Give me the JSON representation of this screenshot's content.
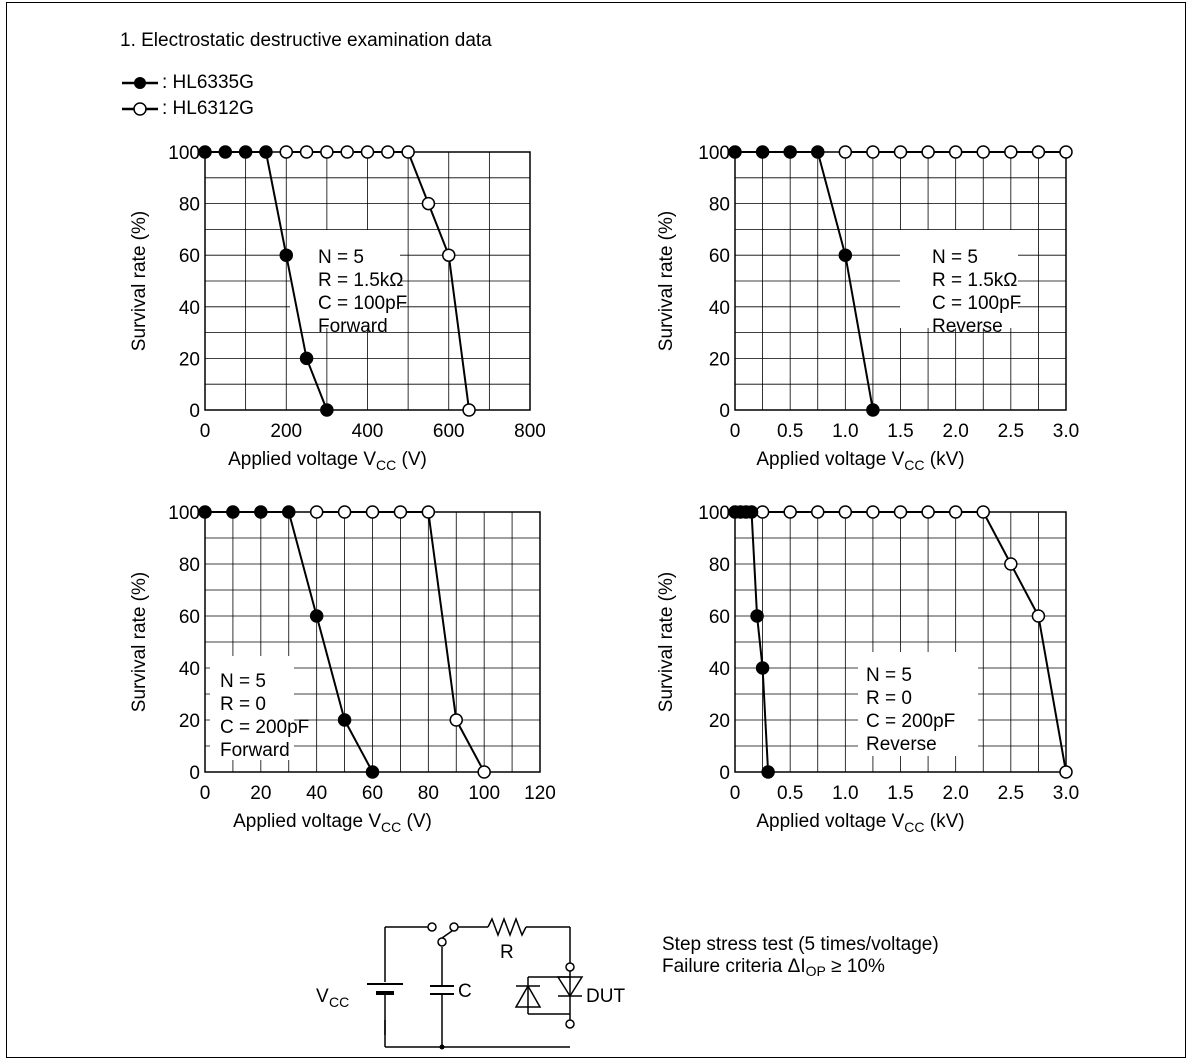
{
  "section_title": "1. Electrostatic destructive examination data",
  "legend": [
    {
      "label": ": HL6335G",
      "marker": "filled-circle"
    },
    {
      "label": ": HL6312G",
      "marker": "open-circle"
    }
  ],
  "axis_text": {
    "ylabel": "Survival rate  (%)",
    "xlabel_prefix": "Applied voltage  V",
    "xlabel_subscript": "CC"
  },
  "chart_data": [
    {
      "type": "line",
      "xlabel_unit": "(V)",
      "xlim": [
        0,
        800
      ],
      "ylim": [
        0,
        100
      ],
      "xticks": [
        0,
        200,
        400,
        600,
        800
      ],
      "xtick_labels": [
        "0",
        "200",
        "400",
        "600",
        "800"
      ],
      "yticks": [
        0,
        20,
        40,
        60,
        80,
        100
      ],
      "ytick_labels": [
        "0",
        "20",
        "40",
        "60",
        "80",
        "100"
      ],
      "annotation": [
        "N = 5",
        "R = 1.5kΩ",
        "C = 100pF",
        "Forward"
      ],
      "series": [
        {
          "name": "HL6335G",
          "marker": "filled",
          "x": [
            0,
            50,
            100,
            150,
            200,
            250,
            300
          ],
          "y": [
            100,
            100,
            100,
            100,
            60,
            20,
            0
          ]
        },
        {
          "name": "HL6312G",
          "marker": "open",
          "x": [
            200,
            250,
            300,
            350,
            400,
            450,
            500,
            550,
            600,
            650
          ],
          "y": [
            100,
            100,
            100,
            100,
            100,
            100,
            100,
            80,
            60,
            0
          ]
        }
      ]
    },
    {
      "type": "line",
      "xlabel_unit": "(kV)",
      "xlim": [
        0,
        3.0
      ],
      "ylim": [
        0,
        100
      ],
      "xticks": [
        0,
        0.5,
        1.0,
        1.5,
        2.0,
        2.5,
        3.0
      ],
      "xtick_labels": [
        "0",
        "0.5",
        "1.0",
        "1.5",
        "2.0",
        "2.5",
        "3.0"
      ],
      "yticks": [
        0,
        20,
        40,
        60,
        80,
        100
      ],
      "ytick_labels": [
        "0",
        "20",
        "40",
        "60",
        "80",
        "100"
      ],
      "annotation": [
        "N = 5",
        "R = 1.5kΩ",
        "C = 100pF",
        "Reverse"
      ],
      "series": [
        {
          "name": "HL6335G",
          "marker": "filled",
          "x": [
            0,
            0.25,
            0.5,
            0.75,
            1.0,
            1.25
          ],
          "y": [
            100,
            100,
            100,
            100,
            60,
            0
          ]
        },
        {
          "name": "HL6312G",
          "marker": "open",
          "x": [
            1.0,
            1.25,
            1.5,
            1.75,
            2.0,
            2.25,
            2.5,
            2.75,
            3.0
          ],
          "y": [
            100,
            100,
            100,
            100,
            100,
            100,
            100,
            100,
            100
          ]
        }
      ]
    },
    {
      "type": "line",
      "xlabel_unit": "(V)",
      "xlim": [
        0,
        120
      ],
      "ylim": [
        0,
        100
      ],
      "xticks": [
        0,
        20,
        40,
        60,
        80,
        100,
        120
      ],
      "xtick_labels": [
        "0",
        "20",
        "40",
        "60",
        "80",
        "100",
        "120"
      ],
      "yticks": [
        0,
        20,
        40,
        60,
        80,
        100
      ],
      "ytick_labels": [
        "0",
        "20",
        "40",
        "60",
        "80",
        "100"
      ],
      "annotation": [
        "N = 5",
        "R = 0",
        "C = 200pF",
        "Forward"
      ],
      "series": [
        {
          "name": "HL6335G",
          "marker": "filled",
          "x": [
            0,
            10,
            20,
            30,
            40,
            50,
            60
          ],
          "y": [
            100,
            100,
            100,
            100,
            60,
            20,
            0
          ]
        },
        {
          "name": "HL6312G",
          "marker": "open",
          "x": [
            40,
            50,
            60,
            70,
            80,
            90,
            100
          ],
          "y": [
            100,
            100,
            100,
            100,
            100,
            20,
            0
          ]
        }
      ]
    },
    {
      "type": "line",
      "xlabel_unit": "(kV)",
      "xlim": [
        0,
        3.0
      ],
      "ylim": [
        0,
        100
      ],
      "xticks": [
        0,
        0.5,
        1.0,
        1.5,
        2.0,
        2.5,
        3.0
      ],
      "xtick_labels": [
        "0",
        "0.5",
        "1.0",
        "1.5",
        "2.0",
        "2.5",
        "3.0"
      ],
      "yticks": [
        0,
        20,
        40,
        60,
        80,
        100
      ],
      "ytick_labels": [
        "0",
        "20",
        "40",
        "60",
        "80",
        "100"
      ],
      "annotation": [
        "N = 5",
        "R = 0",
        "C = 200pF",
        "Reverse"
      ],
      "series": [
        {
          "name": "HL6335G",
          "marker": "filled",
          "x": [
            0,
            0.05,
            0.1,
            0.15,
            0.2,
            0.25,
            0.3
          ],
          "y": [
            100,
            100,
            100,
            100,
            60,
            40,
            0
          ]
        },
        {
          "name": "HL6312G",
          "marker": "open",
          "x": [
            0.25,
            0.5,
            0.75,
            1.0,
            1.25,
            1.5,
            1.75,
            2.0,
            2.25,
            2.5,
            2.75,
            3.0
          ],
          "y": [
            100,
            100,
            100,
            100,
            100,
            100,
            100,
            100,
            100,
            80,
            60,
            0
          ]
        }
      ]
    }
  ],
  "circuit": {
    "vcc_label": "V",
    "vcc_subscript": "CC",
    "c_label": "C",
    "r_label": "R",
    "dut_label": "DUT"
  },
  "notes": {
    "line1": "Step stress test (5 times/voltage)",
    "line2_prefix": "Failure criteria ΔI",
    "line2_subscript": "OP",
    "line2_suffix": " ≥ 10%"
  }
}
